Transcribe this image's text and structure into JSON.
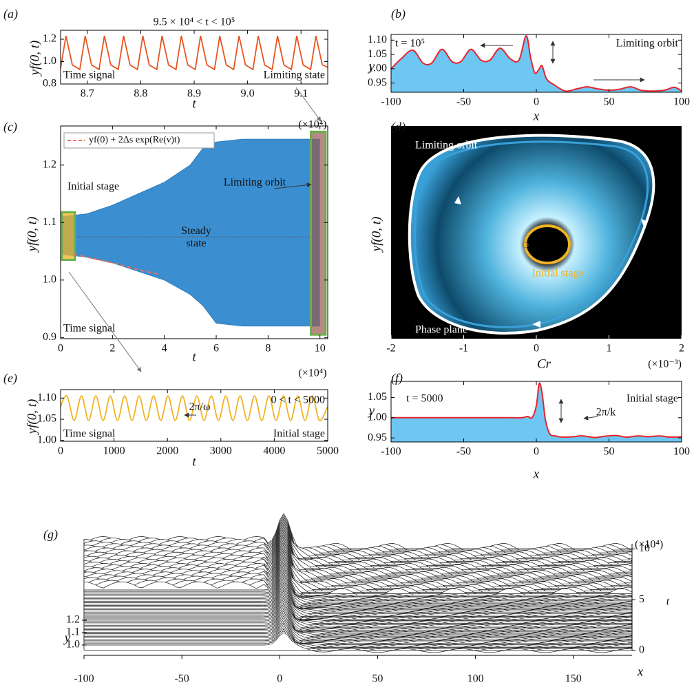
{
  "chart_data": [
    {
      "panel": "(a)",
      "type": "line",
      "title": "9.5 × 10⁴ < t < 10⁵",
      "x_label": "t",
      "y_label": "yf(0, t)",
      "x_multiplier": "(×10⁴)",
      "annotations": [
        "Time signal",
        "Limiting state"
      ],
      "xlim": [
        8.65,
        9.15
      ],
      "ylim": [
        0.8,
        1.28
      ],
      "xticks": [
        8.7,
        8.8,
        8.9,
        {
          "value": 9,
          "label": "9.0"
        },
        9.1
      ],
      "yticks": [
        0.8,
        {
          "value": 1,
          "label": "1.0"
        },
        1.2
      ],
      "series": [
        {
          "color": "#e8541e",
          "x": [
            8.65,
            8.66,
            8.672,
            8.686,
            8.696,
            8.708,
            8.722,
            8.732,
            8.744,
            8.758,
            8.768,
            8.78,
            8.794,
            8.804,
            8.816,
            8.83,
            8.84,
            8.852,
            8.866,
            8.876,
            8.888,
            8.902,
            8.912,
            8.924,
            8.938,
            8.948,
            8.96,
            8.974,
            8.984,
            8.996,
            9.01,
            9.02,
            9.032,
            9.046,
            9.056,
            9.068,
            9.082,
            9.092,
            9.104,
            9.118,
            9.128,
            9.14,
            9.15
          ],
          "values": [
            0.94,
            1.23,
            0.97,
            0.93,
            1.23,
            0.97,
            0.93,
            1.23,
            0.97,
            0.93,
            1.23,
            0.97,
            0.93,
            1.23,
            0.97,
            0.93,
            1.23,
            0.97,
            0.93,
            1.23,
            0.97,
            0.93,
            1.23,
            0.97,
            0.93,
            1.23,
            0.97,
            0.93,
            1.23,
            0.97,
            0.93,
            1.23,
            0.97,
            0.93,
            1.23,
            0.97,
            0.93,
            1.23,
            0.97,
            0.93,
            1.23,
            0.97,
            0.95
          ]
        }
      ]
    },
    {
      "panel": "(b)",
      "type": "area",
      "x_label": "x",
      "y_label": "y",
      "annotations": [
        "t = 10⁵",
        "Limiting orbit"
      ],
      "xlim": [
        -100,
        100
      ],
      "ylim": [
        0.918,
        1.12
      ],
      "xticks": [
        -100,
        -50,
        0,
        50,
        100
      ],
      "yticks": [
        0.95,
        {
          "value": 1,
          "label": "1.00"
        },
        1.05,
        {
          "value": 1.1,
          "label": "1.10"
        }
      ],
      "series": [
        {
          "color": "#e8232b",
          "fill": "#6ec6f2",
          "x": [
            -100,
            -93,
            -85,
            -78,
            -72,
            -65,
            -58,
            -52,
            -45,
            -38,
            -32,
            -25,
            -18,
            -12,
            -7,
            -4,
            -1,
            2,
            4,
            7,
            12,
            20,
            28,
            35,
            42,
            50,
            57,
            65,
            72,
            80,
            88,
            95,
            100
          ],
          "values": [
            1.0,
            1.035,
            1.065,
            1.02,
            1.02,
            1.068,
            1.025,
            1.025,
            1.068,
            1.03,
            1.03,
            1.072,
            1.035,
            1.03,
            1.115,
            1.04,
            0.985,
            1.0,
            1.01,
            0.965,
            0.945,
            0.922,
            0.93,
            0.937,
            0.93,
            0.925,
            0.928,
            0.937,
            0.925,
            0.922,
            0.925,
            0.935,
            0.922
          ]
        }
      ]
    },
    {
      "panel": "(c)",
      "type": "band",
      "x_label": "t",
      "y_label": "yf(0, t)",
      "x_multiplier": "(×10⁴)",
      "annotations": [
        "Initial stage",
        "Steady state",
        "Limiting orbit",
        "Time signal"
      ],
      "xlim": [
        0,
        10.3
      ],
      "ylim": [
        0.898,
        1.268
      ],
      "xticks": [
        0,
        2,
        4,
        6,
        8,
        10
      ],
      "yticks": [
        0.9,
        {
          "value": 1,
          "label": "1.0"
        },
        1.1,
        1.2
      ],
      "steady_value": 1.075,
      "x": [
        0,
        1,
        2,
        3,
        4,
        5,
        5.5,
        6,
        7,
        8,
        9,
        10
      ],
      "series": [
        {
          "color": "#3b8fd1",
          "values": [
            1.11,
            1.115,
            1.13,
            1.15,
            1.17,
            1.2,
            1.23,
            1.24,
            1.245,
            1.245,
            1.245,
            1.245
          ]
        },
        {
          "color": "#3b8fd1",
          "values": [
            1.045,
            1.04,
            1.03,
            1.015,
            1.0,
            0.975,
            0.955,
            0.925,
            0.92,
            0.92,
            0.92,
            0.92
          ]
        },
        {
          "name": "yf(0) + 2Δs exp(Re(ν)t)",
          "color": "#e8735a",
          "x": [
            0.5,
            1,
            2,
            3,
            3.8
          ],
          "values": [
            1.045,
            1.04,
            1.03,
            1.018,
            1.01
          ]
        }
      ]
    },
    {
      "panel": "(d)",
      "type": "phase",
      "x_label": "Cr",
      "y_label": "yf(0, t)",
      "x_multiplier": "(×10⁻³)",
      "annotations": [
        "Limiting orbit",
        "Initial stage",
        "Phase plane"
      ],
      "xlim": [
        -2,
        2
      ],
      "xticks": [
        -2,
        -1,
        0,
        1,
        2
      ]
    },
    {
      "panel": "(e)",
      "type": "line",
      "title": "0 < t < 5000",
      "x_label": "t",
      "y_label": "yf(0, t)",
      "annotations": [
        "2π/ω",
        "Time signal",
        "Initial stage"
      ],
      "xlim": [
        0,
        5000
      ],
      "ylim": [
        0.998,
        1.12
      ],
      "xticks": [
        0,
        1000,
        2000,
        3000,
        4000,
        5000
      ],
      "yticks": [
        {
          "value": 1,
          "label": "1.00"
        },
        1.05,
        {
          "value": 1.1,
          "label": "1.10"
        }
      ],
      "series": [
        {
          "color": "#f0b323",
          "x": [
            0,
            120,
            255,
            390,
            525,
            660,
            795,
            930,
            1065,
            1200,
            1335,
            1470,
            1605,
            1740,
            1875,
            2010,
            2145,
            2280,
            2415,
            2550,
            2685,
            2820,
            2955,
            3090,
            3225,
            3360,
            3495,
            3630,
            3765,
            3900,
            4035,
            4170,
            4305,
            4440,
            4575,
            4710,
            4845,
            5000
          ],
          "values": [
            1.08,
            1.105,
            1.047,
            1.105,
            1.047,
            1.105,
            1.047,
            1.105,
            1.047,
            1.105,
            1.047,
            1.105,
            1.047,
            1.105,
            1.047,
            1.105,
            1.047,
            1.105,
            1.047,
            1.105,
            1.047,
            1.105,
            1.047,
            1.105,
            1.047,
            1.105,
            1.047,
            1.105,
            1.047,
            1.105,
            1.047,
            1.105,
            1.047,
            1.105,
            1.047,
            1.105,
            1.047,
            1.08
          ]
        }
      ]
    },
    {
      "panel": "(f)",
      "type": "area",
      "x_label": "x",
      "y_label": "y",
      "annotations": [
        "t = 5000",
        "Initial stage",
        "2π/k"
      ],
      "xlim": [
        -100,
        100
      ],
      "ylim": [
        0.94,
        1.09
      ],
      "xticks": [
        -100,
        -50,
        0,
        50,
        100
      ],
      "yticks": [
        0.95,
        {
          "value": 1,
          "label": "1.00"
        },
        1.05
      ],
      "series": [
        {
          "color": "#e8232b",
          "fill": "#6ec6f2",
          "x": [
            -100,
            -60,
            -20,
            -10,
            -6,
            -3,
            0,
            2,
            4,
            6,
            8,
            10,
            13,
            18,
            25,
            32,
            40,
            47,
            55,
            62,
            70,
            77,
            85,
            92,
            100
          ],
          "values": [
            1.0,
            1.0,
            1.0,
            1.0,
            1.003,
            1.0,
            1.03,
            1.085,
            1.06,
            1.0,
            0.97,
            0.957,
            0.955,
            0.952,
            0.953,
            0.955,
            0.951,
            0.954,
            0.956,
            0.952,
            0.955,
            0.953,
            0.955,
            0.952,
            0.953
          ]
        }
      ]
    },
    {
      "panel": "(g)",
      "type": "waterfall",
      "x_label": "x",
      "y_label": "y",
      "t_label": "t",
      "t_multiplier": "(×10⁴)",
      "xlim": [
        -100,
        180
      ],
      "xticks": [
        -100,
        -50,
        0,
        50,
        100,
        150
      ],
      "ylim": [
        0.95,
        1.25
      ],
      "yticks": [
        {
          "value": 1,
          "label": "1.0"
        },
        1.1,
        1.2
      ],
      "tlim": [
        0,
        10.5
      ],
      "tticks": [
        0,
        5,
        10
      ]
    }
  ]
}
